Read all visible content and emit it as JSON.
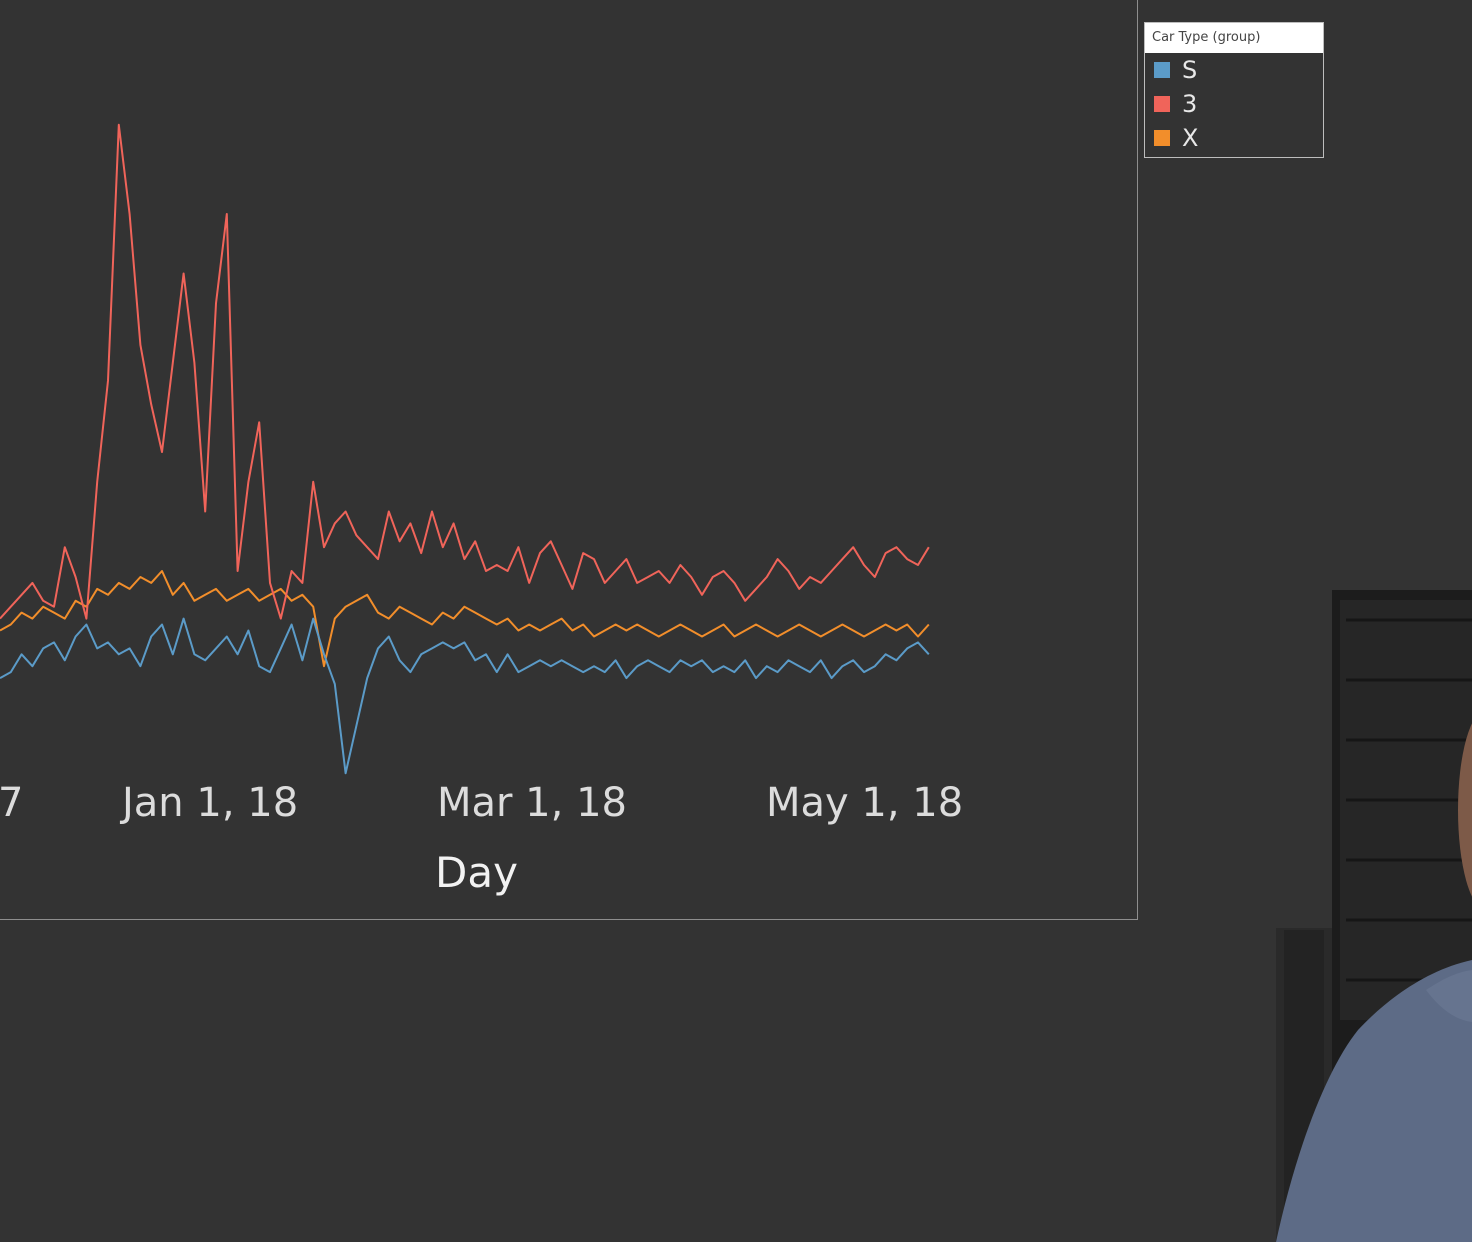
{
  "chart_data": {
    "type": "line",
    "xlabel": "Day",
    "x_ticks": [
      "7",
      "Jan 1, 18",
      "Mar 1, 18",
      "May 1, 18"
    ],
    "legend": {
      "title": "Car Type (group)",
      "position": "top-right"
    },
    "x": [
      "2017-12-19",
      "2017-12-21",
      "2017-12-23",
      "2017-12-25",
      "2017-12-27",
      "2017-12-29",
      "2017-12-31",
      "2018-01-02",
      "2018-01-04",
      "2018-01-06",
      "2018-01-08",
      "2018-01-10",
      "2018-01-12",
      "2018-01-14",
      "2018-01-16",
      "2018-01-18",
      "2018-01-20",
      "2018-01-22",
      "2018-01-24",
      "2018-01-26",
      "2018-01-28",
      "2018-01-30",
      "2018-02-01",
      "2018-02-03",
      "2018-02-05",
      "2018-02-07",
      "2018-02-09",
      "2018-02-11",
      "2018-02-13",
      "2018-02-15",
      "2018-02-17",
      "2018-02-19",
      "2018-02-21",
      "2018-02-23",
      "2018-02-25",
      "2018-02-27",
      "2018-03-01",
      "2018-03-03",
      "2018-03-05",
      "2018-03-07",
      "2018-03-09",
      "2018-03-11",
      "2018-03-13",
      "2018-03-15",
      "2018-03-17",
      "2018-03-19",
      "2018-03-21",
      "2018-03-23",
      "2018-03-25",
      "2018-03-27",
      "2018-03-29",
      "2018-03-31",
      "2018-04-02",
      "2018-04-04",
      "2018-04-06",
      "2018-04-08",
      "2018-04-10",
      "2018-04-12",
      "2018-04-14",
      "2018-04-16",
      "2018-04-18",
      "2018-04-20",
      "2018-04-22",
      "2018-04-24",
      "2018-04-26",
      "2018-04-28",
      "2018-04-30",
      "2018-05-02",
      "2018-05-04",
      "2018-05-06",
      "2018-05-08",
      "2018-05-10",
      "2018-05-12",
      "2018-05-14",
      "2018-05-16",
      "2018-05-18",
      "2018-05-20",
      "2018-05-22",
      "2018-05-24",
      "2018-05-26",
      "2018-05-28",
      "2018-05-30",
      "2018-06-01",
      "2018-06-03",
      "2018-06-05",
      "2018-06-07",
      "2018-06-09"
    ],
    "series": [
      {
        "name": "S",
        "color": "#5b9bc8",
        "values": [
          2,
          3,
          6,
          4,
          7,
          8,
          5,
          9,
          11,
          7,
          8,
          6,
          7,
          4,
          9,
          11,
          6,
          12,
          6,
          5,
          7,
          9,
          6,
          10,
          4,
          3,
          7,
          11,
          5,
          12,
          6,
          1,
          -14,
          -6,
          2,
          7,
          9,
          5,
          3,
          6,
          7,
          8,
          7,
          8,
          5,
          6,
          3,
          6,
          3,
          4,
          5,
          4,
          5,
          4,
          3,
          4,
          3,
          5,
          2,
          4,
          5,
          4,
          3,
          5,
          4,
          5,
          3,
          4,
          3,
          5,
          2,
          4,
          3,
          5,
          4,
          3,
          5,
          2,
          4,
          5,
          3,
          4,
          6,
          5,
          7,
          8,
          6
        ]
      },
      {
        "name": "3",
        "color": "#f0645a",
        "values": [
          12,
          14,
          16,
          18,
          15,
          14,
          24,
          19,
          12,
          35,
          52,
          95,
          80,
          58,
          48,
          40,
          55,
          70,
          55,
          30,
          65,
          80,
          20,
          35,
          45,
          18,
          12,
          20,
          18,
          35,
          24,
          28,
          30,
          26,
          24,
          22,
          30,
          25,
          28,
          23,
          30,
          24,
          28,
          22,
          25,
          20,
          21,
          20,
          24,
          18,
          23,
          25,
          21,
          17,
          23,
          22,
          18,
          20,
          22,
          18,
          19,
          20,
          18,
          21,
          19,
          16,
          19,
          20,
          18,
          15,
          17,
          19,
          22,
          20,
          17,
          19,
          18,
          20,
          22,
          24,
          21,
          19,
          23,
          24,
          22,
          21,
          24
        ]
      },
      {
        "name": "X",
        "color": "#f28e2b",
        "values": [
          10,
          11,
          13,
          12,
          14,
          13,
          12,
          15,
          14,
          17,
          16,
          18,
          17,
          19,
          18,
          20,
          16,
          18,
          15,
          16,
          17,
          15,
          16,
          17,
          15,
          16,
          17,
          15,
          16,
          14,
          4,
          12,
          14,
          15,
          16,
          13,
          12,
          14,
          13,
          12,
          11,
          13,
          12,
          14,
          13,
          12,
          11,
          12,
          10,
          11,
          10,
          11,
          12,
          10,
          11,
          9,
          10,
          11,
          10,
          11,
          10,
          9,
          10,
          11,
          10,
          9,
          10,
          11,
          9,
          10,
          11,
          10,
          9,
          10,
          11,
          10,
          9,
          10,
          11,
          10,
          9,
          10,
          11,
          10,
          11,
          9,
          11
        ]
      }
    ]
  }
}
